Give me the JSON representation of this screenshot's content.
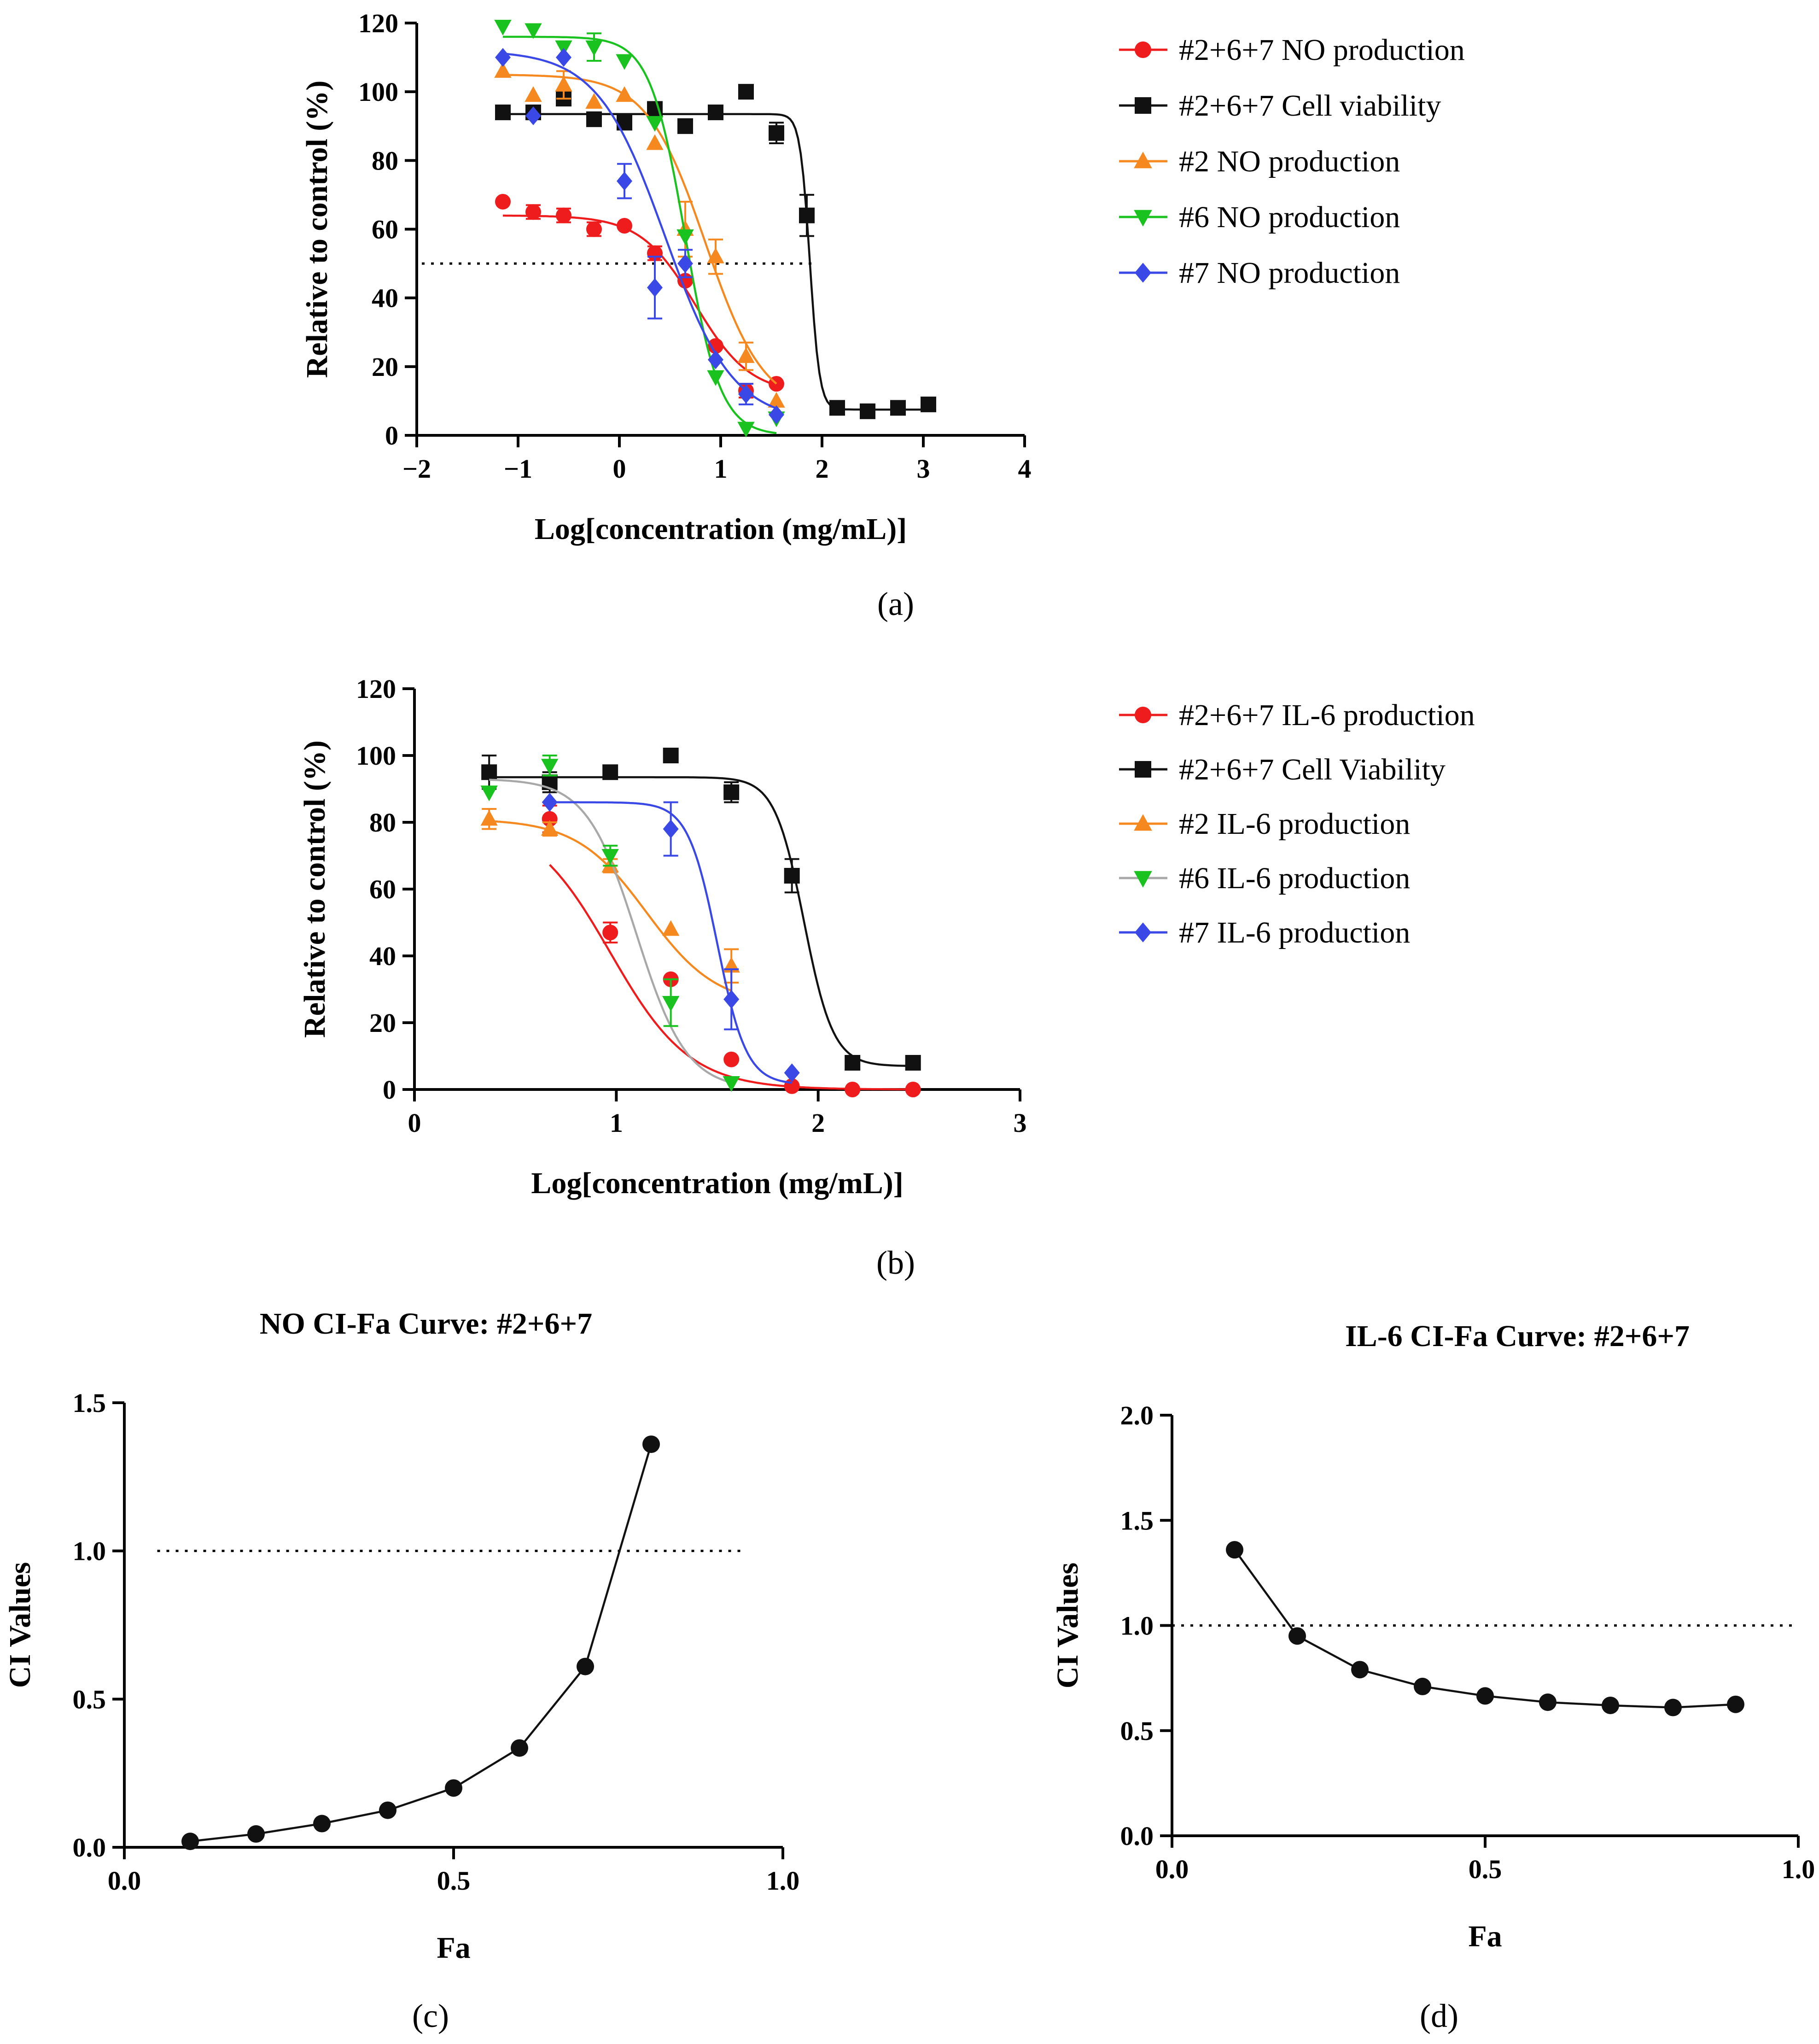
{
  "panel_labels": [
    "(a)",
    "(b)",
    "(c)",
    "(d)"
  ],
  "colors": {
    "red": "#ee1c1c",
    "black": "#111111",
    "orange": "#f5891f",
    "green": "#19c21e",
    "blue": "#3a49e6",
    "gray": "#a8a8a8"
  },
  "chart_data": [
    {
      "id": "a",
      "type": "scatter",
      "title": "",
      "xlabel": "Log[concentration (mg/mL)]",
      "ylabel": "Relative to control (%)",
      "xlim": [
        -2,
        4
      ],
      "ylim": [
        0,
        120
      ],
      "xticks": [
        -2,
        -1,
        0,
        1,
        2,
        3,
        4
      ],
      "xtick_labels": [
        "−2",
        "−1",
        "0",
        "1",
        "2",
        "3",
        "4"
      ],
      "yticks": [
        0,
        20,
        40,
        60,
        80,
        100,
        120
      ],
      "ytick_labels": [
        "0",
        "20",
        "40",
        "60",
        "80",
        "100",
        "120"
      ],
      "reference_line_y": 50,
      "legend": "right",
      "series": [
        {
          "name": "#2+6+7 NO production",
          "color": "red",
          "marker": "circle",
          "x": [
            -1.15,
            -0.85,
            -0.55,
            -0.25,
            0.05,
            0.35,
            0.65,
            0.95,
            1.25,
            1.55
          ],
          "y": [
            68,
            65,
            64,
            60,
            61,
            53,
            45,
            26,
            13,
            15
          ],
          "err": [
            0,
            2,
            2,
            2,
            0,
            2,
            0,
            0,
            2,
            0
          ],
          "fit": {
            "bottom": 12,
            "top": 64,
            "logec50": 0.75,
            "hill": -1.6,
            "x_range": [
              -1.15,
              1.55
            ]
          }
        },
        {
          "name": "#2+6+7 Cell viability",
          "color": "black",
          "marker": "square",
          "x": [
            -1.15,
            -0.85,
            -0.55,
            -0.25,
            0.05,
            0.35,
            0.65,
            0.95,
            1.25,
            1.55,
            1.85,
            2.15,
            2.45,
            2.75,
            3.05
          ],
          "y": [
            94,
            94,
            98,
            92,
            91,
            95,
            90,
            94,
            100,
            88,
            64,
            8,
            7,
            8,
            9
          ],
          "err": [
            0,
            0,
            2,
            0,
            0,
            0,
            2,
            0,
            0,
            3,
            6,
            0,
            0,
            0,
            0
          ],
          "fit": {
            "bottom": 7.5,
            "top": 93.5,
            "logec50": 1.88,
            "hill": -9,
            "x_range": [
              -1.15,
              3.05
            ]
          }
        },
        {
          "name": "#2 NO production",
          "color": "orange",
          "marker": "triangle-up",
          "x": [
            -1.15,
            -0.85,
            -0.55,
            -0.25,
            0.05,
            0.35,
            0.65,
            0.95,
            1.25,
            1.55
          ],
          "y": [
            106,
            99,
            102,
            97,
            99,
            85,
            60,
            52,
            23,
            10
          ],
          "err": [
            0,
            0,
            4,
            0,
            0,
            0,
            8,
            5,
            4,
            0
          ],
          "fit": {
            "bottom": 7,
            "top": 105,
            "logec50": 0.85,
            "hill": -1.5,
            "x_range": [
              -1.15,
              1.55
            ]
          }
        },
        {
          "name": "#6 NO production",
          "color": "green",
          "marker": "triangle-down",
          "x": [
            -1.15,
            -0.85,
            -0.55,
            -0.25,
            0.05,
            0.35,
            0.65,
            0.95,
            1.25,
            1.55
          ],
          "y": [
            119,
            118,
            113,
            113,
            109,
            91,
            58,
            17,
            2,
            5
          ],
          "err": [
            0,
            0,
            0,
            4,
            0,
            0,
            0,
            0,
            0,
            0
          ],
          "fit": {
            "bottom": 0,
            "top": 116,
            "logec50": 0.65,
            "hill": -2.5,
            "x_range": [
              -1.15,
              1.55
            ]
          }
        },
        {
          "name": "#7 NO production",
          "color": "blue",
          "marker": "diamond",
          "x": [
            -1.15,
            -0.85,
            -0.55,
            0.05,
            0.35,
            0.65,
            0.95,
            1.25,
            1.55
          ],
          "y": [
            110,
            93,
            110,
            74,
            43,
            50,
            22,
            12,
            6
          ],
          "err": [
            0,
            0,
            0,
            5,
            9,
            4,
            0,
            3,
            0
          ],
          "fit": {
            "bottom": 4,
            "top": 112,
            "logec50": 0.45,
            "hill": -1.3,
            "x_range": [
              -1.15,
              1.55
            ]
          }
        }
      ]
    },
    {
      "id": "b",
      "type": "scatter",
      "title": "",
      "xlabel": "Log[concentration (mg/mL)]",
      "ylabel": "Relative to control (%)",
      "xlim": [
        0,
        3
      ],
      "ylim": [
        0,
        120
      ],
      "xticks": [
        0,
        1,
        2,
        3
      ],
      "xtick_labels": [
        "0",
        "1",
        "2",
        "3"
      ],
      "yticks": [
        0,
        20,
        40,
        60,
        80,
        100,
        120
      ],
      "ytick_labels": [
        "0",
        "20",
        "40",
        "60",
        "80",
        "100",
        "120"
      ],
      "legend": "right",
      "series": [
        {
          "name": "#2+6+7 IL-6 production",
          "color": "red",
          "marker": "circle",
          "x": [
            0.67,
            0.97,
            1.27,
            1.57,
            1.87,
            2.17,
            2.47
          ],
          "y": [
            81,
            47,
            33,
            9,
            1,
            0,
            0
          ],
          "err": [
            4,
            3,
            0,
            0,
            0,
            0,
            0
          ],
          "fit": {
            "bottom": 0,
            "top": 82,
            "logec50": 0.97,
            "hill": -2.2,
            "x_range": [
              0.67,
              2.47
            ]
          }
        },
        {
          "name": "#2+6+7 Cell Viability",
          "color": "black",
          "marker": "square",
          "x": [
            0.37,
            0.67,
            0.97,
            1.27,
            1.57,
            1.87,
            2.17,
            2.47
          ],
          "y": [
            95,
            92,
            95,
            100,
            89,
            64,
            8,
            8
          ],
          "err": [
            5,
            3,
            0,
            0,
            3,
            5,
            0,
            0
          ],
          "fit": {
            "bottom": 7,
            "top": 93.5,
            "logec50": 1.93,
            "hill": -6,
            "x_range": [
              0.37,
              2.47
            ]
          }
        },
        {
          "name": "#2 IL-6 production",
          "color": "orange",
          "marker": "triangle-up",
          "x": [
            0.37,
            0.67,
            0.97,
            1.27,
            1.57
          ],
          "y": [
            81,
            78,
            67,
            48,
            37
          ],
          "err": [
            3,
            2,
            2,
            0,
            5
          ],
          "fit": {
            "bottom": 25,
            "top": 81,
            "logec50": 1.15,
            "hill": -2.5,
            "x_range": [
              0.37,
              1.57
            ]
          }
        },
        {
          "name": "#6 IL-6 production",
          "color": "green",
          "marker": "triangle-down",
          "x": [
            0.37,
            0.67,
            0.97,
            1.27,
            1.57
          ],
          "y": [
            89,
            97,
            70,
            26,
            2
          ],
          "err": [
            0,
            3,
            3,
            7,
            0
          ],
          "fit": {
            "bottom": 0,
            "top": 93,
            "logec50": 1.1,
            "hill": -3.5,
            "x_range": [
              0.37,
              1.57
            ],
            "color": "gray"
          }
        },
        {
          "name": "#7 IL-6 production",
          "color": "blue",
          "marker": "diamond",
          "x": [
            0.67,
            1.27,
            1.57,
            1.87
          ],
          "y": [
            86,
            78,
            27,
            5
          ],
          "err": [
            0,
            8,
            9,
            0
          ],
          "fit": {
            "bottom": 1.5,
            "top": 86,
            "logec50": 1.5,
            "hill": -6,
            "x_range": [
              0.67,
              1.87
            ]
          }
        }
      ]
    },
    {
      "id": "c",
      "type": "line",
      "title": "NO CI-Fa Curve: #2+6+7",
      "xlabel": "Fa",
      "ylabel": "CI Values",
      "xlim": [
        0,
        1
      ],
      "ylim": [
        0,
        1.5
      ],
      "xticks": [
        0,
        0.5,
        1
      ],
      "xtick_labels": [
        "0.0",
        "0.5",
        "1.0"
      ],
      "yticks": [
        0,
        0.5,
        1,
        1.5
      ],
      "ytick_labels": [
        "0.0",
        "0.5",
        "1.0",
        "1.5"
      ],
      "reference_line_y": 1.0,
      "reference_line_x_range": [
        0.05,
        1.0
      ],
      "series": [
        {
          "name": "CI",
          "color": "black",
          "marker": "circle",
          "x": [
            0.1,
            0.2,
            0.3,
            0.4,
            0.5,
            0.6,
            0.7,
            0.8
          ],
          "y": [
            0.02,
            0.045,
            0.08,
            0.125,
            0.2,
            0.335,
            0.61,
            1.36
          ]
        }
      ]
    },
    {
      "id": "d",
      "type": "line",
      "title": "IL-6 CI-Fa Curve: #2+6+7",
      "xlabel": "Fa",
      "ylabel": "CI Values",
      "xlim": [
        0,
        1
      ],
      "ylim": [
        0,
        2
      ],
      "xticks": [
        0,
        0.5,
        1
      ],
      "xtick_labels": [
        "0.0",
        "0.5",
        "1.0"
      ],
      "yticks": [
        0,
        0.5,
        1,
        1.5,
        2
      ],
      "ytick_labels": [
        "0.0",
        "0.5",
        "1.0",
        "1.5",
        "2.0"
      ],
      "reference_line_y": 1.0,
      "reference_line_x_range": [
        0,
        1.0
      ],
      "series": [
        {
          "name": "CI",
          "color": "black",
          "marker": "circle",
          "x": [
            0.1,
            0.2,
            0.3,
            0.4,
            0.5,
            0.6,
            0.7,
            0.8,
            0.9
          ],
          "y": [
            1.36,
            0.95,
            0.79,
            0.71,
            0.665,
            0.635,
            0.62,
            0.61,
            0.625
          ]
        }
      ]
    }
  ]
}
